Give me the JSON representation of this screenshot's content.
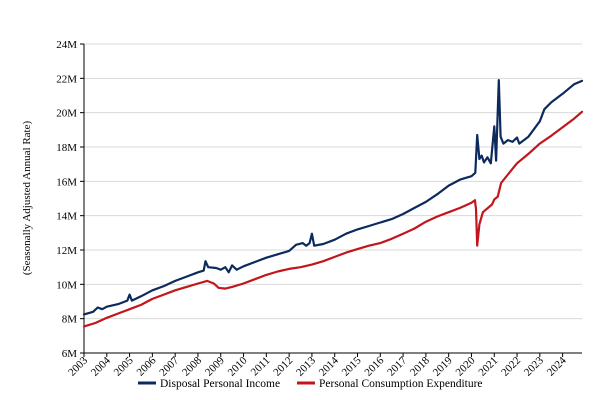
{
  "chart_data": {
    "type": "line",
    "title": "",
    "xlabel": "",
    "ylabel": "(Seasonally Adjusted Annual Rate)",
    "xlim": [
      2003,
      2024.85
    ],
    "ylim": [
      6,
      24
    ],
    "y_ticks": [
      6,
      8,
      10,
      12,
      14,
      16,
      18,
      20,
      22,
      24
    ],
    "y_tick_labels": [
      "6M",
      "8M",
      "10M",
      "12M",
      "14M",
      "16M",
      "18M",
      "20M",
      "22M",
      "24M"
    ],
    "x_ticks": [
      2003,
      2004,
      2005,
      2006,
      2007,
      2008,
      2009,
      2010,
      2011,
      2012,
      2013,
      2014,
      2015,
      2016,
      2017,
      2018,
      2019,
      2020,
      2021,
      2022,
      2023,
      2024
    ],
    "x_tick_labels": [
      "2003",
      "2004",
      "2005",
      "2006",
      "2007",
      "2008",
      "2009",
      "2010",
      "2011",
      "2012",
      "2013",
      "2014",
      "2015",
      "2016",
      "2017",
      "2018",
      "2019",
      "2020",
      "2021",
      "2022",
      "2023",
      "2024"
    ],
    "grid": "horizontal",
    "legend_position": "bottom",
    "series": [
      {
        "name": "Disposal Personal Income",
        "color": "#0d2a5e",
        "points": [
          [
            2003.0,
            8.25
          ],
          [
            2003.4,
            8.4
          ],
          [
            2003.6,
            8.65
          ],
          [
            2003.8,
            8.55
          ],
          [
            2004.0,
            8.7
          ],
          [
            2004.5,
            8.85
          ],
          [
            2004.9,
            9.05
          ],
          [
            2005.0,
            9.4
          ],
          [
            2005.1,
            9.05
          ],
          [
            2005.5,
            9.3
          ],
          [
            2006.0,
            9.65
          ],
          [
            2006.5,
            9.9
          ],
          [
            2007.0,
            10.2
          ],
          [
            2007.5,
            10.45
          ],
          [
            2008.0,
            10.7
          ],
          [
            2008.25,
            10.8
          ],
          [
            2008.33,
            11.35
          ],
          [
            2008.45,
            11.0
          ],
          [
            2008.8,
            10.95
          ],
          [
            2009.0,
            10.85
          ],
          [
            2009.2,
            11.0
          ],
          [
            2009.35,
            10.7
          ],
          [
            2009.5,
            11.1
          ],
          [
            2009.7,
            10.85
          ],
          [
            2010.0,
            11.05
          ],
          [
            2010.5,
            11.3
          ],
          [
            2011.0,
            11.55
          ],
          [
            2011.5,
            11.75
          ],
          [
            2012.0,
            11.95
          ],
          [
            2012.3,
            12.3
          ],
          [
            2012.6,
            12.4
          ],
          [
            2012.75,
            12.25
          ],
          [
            2012.9,
            12.4
          ],
          [
            2013.0,
            12.95
          ],
          [
            2013.1,
            12.25
          ],
          [
            2013.5,
            12.35
          ],
          [
            2014.0,
            12.6
          ],
          [
            2014.5,
            12.95
          ],
          [
            2015.0,
            13.2
          ],
          [
            2015.5,
            13.4
          ],
          [
            2016.0,
            13.6
          ],
          [
            2016.5,
            13.8
          ],
          [
            2017.0,
            14.1
          ],
          [
            2017.5,
            14.45
          ],
          [
            2018.0,
            14.8
          ],
          [
            2018.5,
            15.25
          ],
          [
            2019.0,
            15.75
          ],
          [
            2019.5,
            16.1
          ],
          [
            2020.0,
            16.3
          ],
          [
            2020.17,
            16.5
          ],
          [
            2020.25,
            18.7
          ],
          [
            2020.35,
            17.3
          ],
          [
            2020.45,
            17.5
          ],
          [
            2020.55,
            17.1
          ],
          [
            2020.7,
            17.4
          ],
          [
            2020.85,
            17.05
          ],
          [
            2021.0,
            19.2
          ],
          [
            2021.08,
            17.2
          ],
          [
            2021.2,
            21.9
          ],
          [
            2021.28,
            18.6
          ],
          [
            2021.4,
            18.2
          ],
          [
            2021.6,
            18.4
          ],
          [
            2021.8,
            18.3
          ],
          [
            2022.0,
            18.55
          ],
          [
            2022.1,
            18.2
          ],
          [
            2022.5,
            18.6
          ],
          [
            2023.0,
            19.5
          ],
          [
            2023.2,
            20.2
          ],
          [
            2023.5,
            20.6
          ],
          [
            2024.0,
            21.1
          ],
          [
            2024.5,
            21.65
          ],
          [
            2024.85,
            21.85
          ]
        ]
      },
      {
        "name": "Personal Consumption Expenditure",
        "color": "#c0161c",
        "points": [
          [
            2003.0,
            7.55
          ],
          [
            2003.5,
            7.75
          ],
          [
            2004.0,
            8.05
          ],
          [
            2004.5,
            8.3
          ],
          [
            2005.0,
            8.55
          ],
          [
            2005.5,
            8.8
          ],
          [
            2006.0,
            9.15
          ],
          [
            2006.5,
            9.4
          ],
          [
            2007.0,
            9.65
          ],
          [
            2007.5,
            9.85
          ],
          [
            2008.0,
            10.05
          ],
          [
            2008.4,
            10.2
          ],
          [
            2008.7,
            10.05
          ],
          [
            2008.9,
            9.8
          ],
          [
            2009.2,
            9.75
          ],
          [
            2009.5,
            9.85
          ],
          [
            2010.0,
            10.05
          ],
          [
            2010.5,
            10.3
          ],
          [
            2011.0,
            10.55
          ],
          [
            2011.5,
            10.75
          ],
          [
            2012.0,
            10.9
          ],
          [
            2012.5,
            11.0
          ],
          [
            2013.0,
            11.15
          ],
          [
            2013.5,
            11.35
          ],
          [
            2014.0,
            11.6
          ],
          [
            2014.5,
            11.85
          ],
          [
            2015.0,
            12.05
          ],
          [
            2015.5,
            12.25
          ],
          [
            2016.0,
            12.4
          ],
          [
            2016.5,
            12.65
          ],
          [
            2017.0,
            12.95
          ],
          [
            2017.5,
            13.25
          ],
          [
            2018.0,
            13.65
          ],
          [
            2018.5,
            13.95
          ],
          [
            2019.0,
            14.2
          ],
          [
            2019.5,
            14.45
          ],
          [
            2020.0,
            14.75
          ],
          [
            2020.15,
            14.9
          ],
          [
            2020.2,
            14.4
          ],
          [
            2020.25,
            12.25
          ],
          [
            2020.35,
            13.5
          ],
          [
            2020.5,
            14.2
          ],
          [
            2020.9,
            14.65
          ],
          [
            2021.0,
            14.95
          ],
          [
            2021.15,
            15.1
          ],
          [
            2021.3,
            15.9
          ],
          [
            2021.6,
            16.4
          ],
          [
            2022.0,
            17.05
          ],
          [
            2022.5,
            17.6
          ],
          [
            2023.0,
            18.2
          ],
          [
            2023.5,
            18.65
          ],
          [
            2024.0,
            19.15
          ],
          [
            2024.5,
            19.65
          ],
          [
            2024.85,
            20.05
          ]
        ]
      }
    ]
  }
}
